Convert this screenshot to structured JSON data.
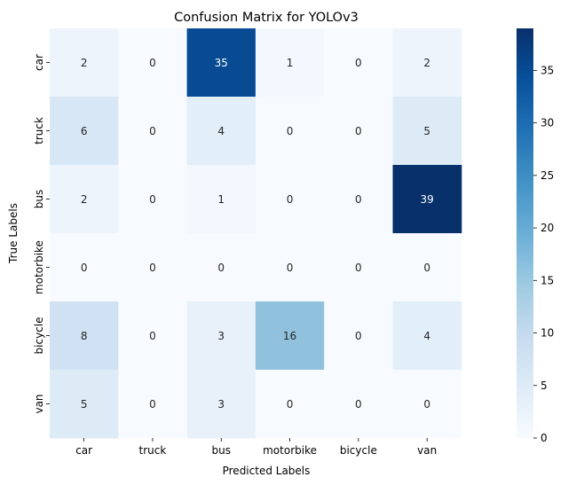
{
  "chart_data": {
    "type": "heatmap",
    "title": "Confusion Matrix for YOLOv3",
    "xlabel": "Predicted Labels",
    "ylabel": "True Labels",
    "x_categories": [
      "car",
      "truck",
      "bus",
      "motorbike",
      "bicycle",
      "van"
    ],
    "y_categories": [
      "car",
      "truck",
      "bus",
      "motorbike",
      "bicycle",
      "van"
    ],
    "values": [
      [
        2,
        0,
        35,
        1,
        0,
        2
      ],
      [
        6,
        0,
        4,
        0,
        0,
        5
      ],
      [
        2,
        0,
        1,
        0,
        0,
        39
      ],
      [
        0,
        0,
        0,
        0,
        0,
        0
      ],
      [
        8,
        0,
        3,
        16,
        0,
        4
      ],
      [
        5,
        0,
        3,
        0,
        0,
        0
      ]
    ],
    "colorbar": {
      "min": 0,
      "max": 39,
      "ticks": [
        0,
        5,
        10,
        15,
        20,
        25,
        30,
        35
      ],
      "colormap": "Blues"
    },
    "annotation_colors": {
      "light_text": "#ffffff",
      "dark_text": "#262626"
    }
  }
}
